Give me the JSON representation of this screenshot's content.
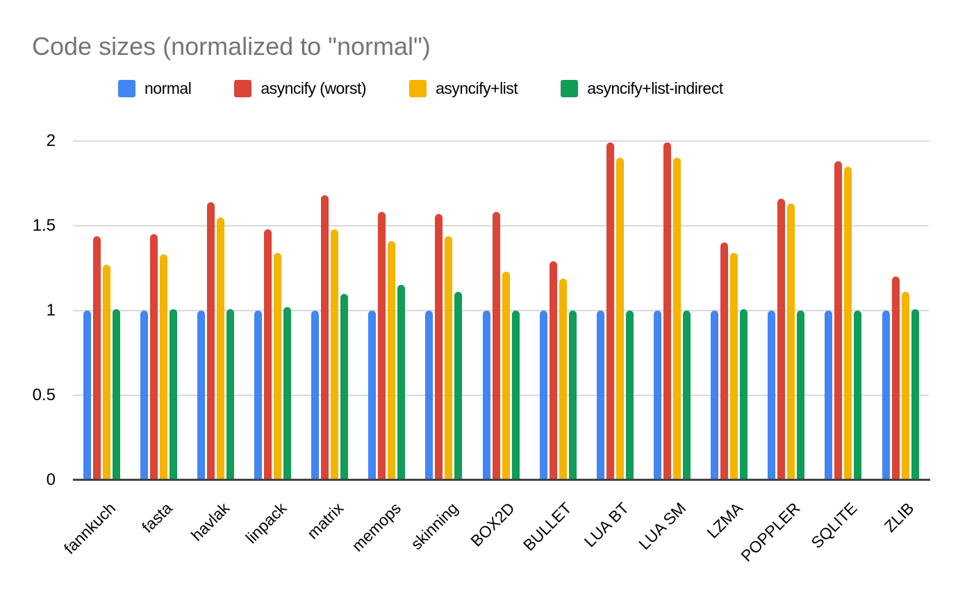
{
  "chart_data": {
    "type": "bar",
    "title": "Code sizes (normalized to \"normal\")",
    "xlabel": "",
    "ylabel": "",
    "ylim": [
      0,
      2
    ],
    "yticks": [
      "0",
      "0.5",
      "1",
      "1.5",
      "2"
    ],
    "ytick_values": [
      0,
      0.5,
      1,
      1.5,
      2
    ],
    "grid": true,
    "legend_position": "top",
    "categories": [
      "fannkuch",
      "fasta",
      "havlak",
      "linpack",
      "matrix",
      "memops",
      "skinning",
      "BOX2D",
      "BULLET",
      "LUA BT",
      "LUA SM",
      "LZMA",
      "POPPLER",
      "SQLITE",
      "ZLIB"
    ],
    "series": [
      {
        "name": "normal",
        "color": "#4285F4",
        "values": [
          1.0,
          1.0,
          1.0,
          1.0,
          1.0,
          1.0,
          1.0,
          1.0,
          1.0,
          1.0,
          1.0,
          1.0,
          1.0,
          1.0,
          1.0
        ]
      },
      {
        "name": "asyncify (worst)",
        "color": "#DB4437",
        "values": [
          1.44,
          1.45,
          1.64,
          1.48,
          1.68,
          1.58,
          1.57,
          1.58,
          1.29,
          1.99,
          1.99,
          1.4,
          1.66,
          1.88,
          1.2
        ]
      },
      {
        "name": "asyncify+list",
        "color": "#F4B400",
        "values": [
          1.27,
          1.33,
          1.55,
          1.34,
          1.48,
          1.41,
          1.44,
          1.23,
          1.19,
          1.9,
          1.9,
          1.34,
          1.63,
          1.85,
          1.11
        ]
      },
      {
        "name": "asyncify+list-indirect",
        "color": "#0F9D58",
        "values": [
          1.01,
          1.01,
          1.01,
          1.02,
          1.1,
          1.15,
          1.11,
          1.0,
          1.0,
          1.0,
          1.0,
          1.01,
          1.0,
          1.0,
          1.01
        ]
      }
    ],
    "colors": {
      "title_text": "#757575",
      "axis_text": "#000000",
      "gridline": "#d9d9d9",
      "baseline": "#424242",
      "background": "#ffffff"
    }
  }
}
